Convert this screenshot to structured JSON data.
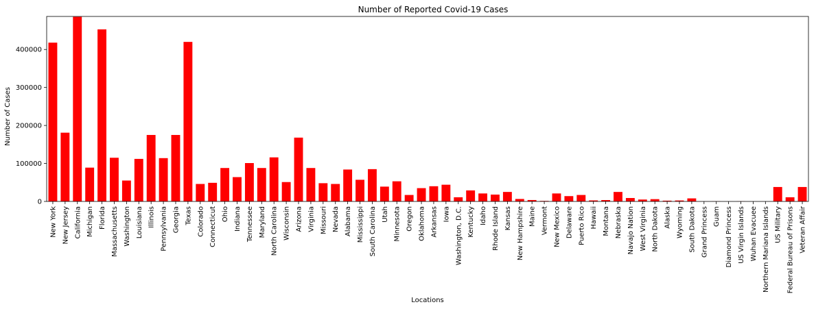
{
  "chart_data": {
    "type": "bar",
    "title": "Number of Reported Covid-19 Cases",
    "xlabel": "Locations",
    "ylabel": "Number of Cases",
    "ylim": [
      0,
      487000
    ],
    "yticks": [
      0,
      100000,
      200000,
      300000,
      400000
    ],
    "bar_color": "#ff0000",
    "grid": false,
    "categories": [
      "New York",
      "New Jersey",
      "California",
      "Michigan",
      "Florida",
      "Massachusetts",
      "Washington",
      "Louisiana",
      "Illinois",
      "Pennsylvania",
      "Georgia",
      "Texas",
      "Colorado",
      "Connecticut",
      "Ohio",
      "Indiana",
      "Tennessee",
      "Maryland",
      "North Carolina",
      "Wisconsin",
      "Arizona",
      "Virginia",
      "Missouri",
      "Nevada",
      "Alabama",
      "Mississippi",
      "South Carolina",
      "Utah",
      "Minnesota",
      "Oregon",
      "Oklahoma",
      "Arkansas",
      "Iowa",
      "Washington, D.C.",
      "Kentucky",
      "Idaho",
      "Rhode Island",
      "Kansas",
      "New Hampshire",
      "Maine",
      "Vermont",
      "New Mexico",
      "Delaware",
      "Puerto Rico",
      "Hawaii",
      "Montana",
      "Nebraska",
      "Navajo Nation",
      "West Virginia",
      "North Dakota",
      "Alaska",
      "Wyoming",
      "South Dakota",
      "Grand Princess",
      "Guam",
      "Diamond Princess",
      "US Virgin Islands",
      "Wuhan Evacuee",
      "Northern Mariana Islands",
      "US Military",
      "Federal Bureau of Prisons",
      "Veteran Affair"
    ],
    "values": [
      418000,
      181000,
      486000,
      89000,
      453000,
      115000,
      55000,
      112000,
      175000,
      114000,
      175000,
      420000,
      46000,
      49000,
      88000,
      64000,
      101000,
      88000,
      116000,
      51000,
      168000,
      88000,
      48000,
      46000,
      84000,
      57000,
      85000,
      39000,
      53000,
      17000,
      35000,
      40000,
      44000,
      11000,
      29000,
      21000,
      18000,
      25000,
      6500,
      3700,
      1400,
      21000,
      14000,
      17000,
      2700,
      3600,
      25000,
      9000,
      5000,
      6000,
      2000,
      2500,
      8000,
      100,
      350,
      50,
      300,
      20,
      40,
      38000,
      11000,
      38000
    ]
  }
}
